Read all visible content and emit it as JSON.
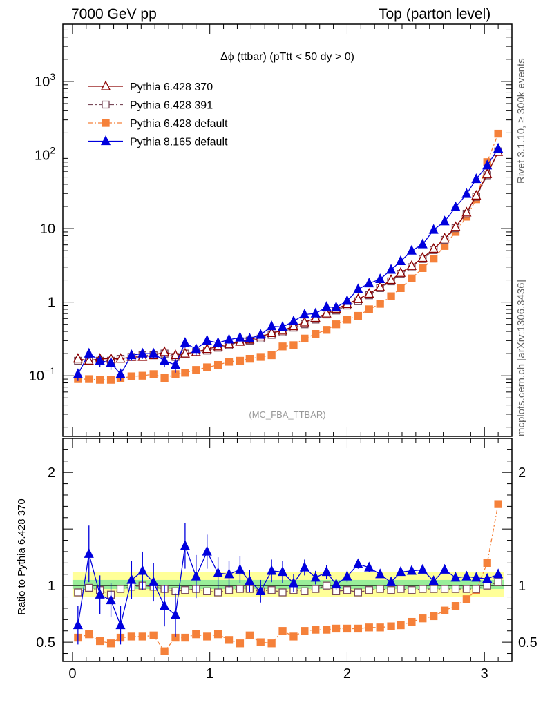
{
  "header": {
    "left": "7000 GeV pp",
    "right": "Top (parton level)"
  },
  "side_notes": {
    "rivet": "Rivet 3.1.10, ≥ 300k events",
    "mcplots": "mcplots.cern.ch [arXiv:1306.3436]"
  },
  "chart_data": {
    "type": "line",
    "title": "Δϕ (ttbar) (pTtt < 50 dy > 0)",
    "watermark": "(MC_FBA_TTBAR)",
    "xlim": [
      -0.07,
      3.2
    ],
    "x_ticks": [
      "0",
      "1",
      "2",
      "3"
    ],
    "main": {
      "yscale": "log",
      "ylim": [
        0.015,
        6000
      ],
      "y_ticks": [
        {
          "value": 0.1,
          "base": "10",
          "exp": "−1"
        },
        {
          "value": 1,
          "base": "1",
          "exp": ""
        },
        {
          "value": 10,
          "base": "10",
          "exp": ""
        },
        {
          "value": 100,
          "base": "10",
          "exp": "2"
        },
        {
          "value": 1000,
          "base": "10",
          "exp": "3"
        }
      ]
    },
    "ratio": {
      "ylabel": "Ratio to Pythia 6.428 370",
      "ylim": [
        0.33,
        2.3
      ],
      "y_ticks": [
        "0.5",
        "1",
        "2"
      ],
      "band_yellow": [
        0.9,
        1.12
      ],
      "band_green": [
        0.97,
        1.05
      ]
    },
    "x": [
      0.04,
      0.12,
      0.2,
      0.28,
      0.35,
      0.43,
      0.51,
      0.59,
      0.67,
      0.75,
      0.82,
      0.9,
      0.98,
      1.06,
      1.14,
      1.22,
      1.29,
      1.37,
      1.45,
      1.53,
      1.61,
      1.69,
      1.77,
      1.85,
      1.92,
      2.0,
      2.08,
      2.16,
      2.24,
      2.32,
      2.39,
      2.47,
      2.55,
      2.63,
      2.71,
      2.79,
      2.87,
      2.94,
      3.02,
      3.1
    ],
    "series": [
      {
        "name": "Pythia 6.428 370",
        "color": "#8b0000",
        "marker": "triangle-open",
        "dash": "",
        "values": [
          0.17,
          0.16,
          0.17,
          0.17,
          0.17,
          0.18,
          0.18,
          0.19,
          0.21,
          0.19,
          0.2,
          0.21,
          0.23,
          0.25,
          0.27,
          0.29,
          0.31,
          0.34,
          0.38,
          0.41,
          0.47,
          0.53,
          0.61,
          0.7,
          0.81,
          0.94,
          1.1,
          1.3,
          1.6,
          2.0,
          2.5,
          3.1,
          4.0,
          5.3,
          7.3,
          10.5,
          16.5,
          28,
          55,
          110
        ],
        "errors": [
          0.015,
          0.015,
          0.015,
          0.015,
          0.015,
          0.016,
          0.016,
          0.017,
          0.02,
          0.018,
          0.019,
          0.02,
          0.02,
          0.02,
          0.02,
          0.02,
          0.02,
          0.02,
          0.02,
          0.02,
          0.02,
          0.02,
          0.02,
          0.02,
          0.02,
          0.02,
          0.02,
          0.02,
          0.02,
          0.02,
          0.02,
          0.02,
          0.02,
          0.02,
          0.02,
          0.02,
          0.02,
          0.02,
          0.02,
          0.02
        ],
        "ratio": [
          1,
          1,
          1,
          1,
          1,
          1,
          1,
          1,
          1,
          1,
          1,
          1,
          1,
          1,
          1,
          1,
          1,
          1,
          1,
          1,
          1,
          1,
          1,
          1,
          1,
          1,
          1,
          1,
          1,
          1,
          1,
          1,
          1,
          1,
          1,
          1,
          1,
          1,
          1,
          1
        ],
        "ratio_err": [
          0,
          0,
          0,
          0,
          0,
          0,
          0,
          0,
          0,
          0,
          0,
          0,
          0,
          0,
          0,
          0,
          0,
          0,
          0,
          0,
          0,
          0,
          0,
          0,
          0,
          0,
          0,
          0,
          0,
          0,
          0,
          0,
          0,
          0,
          0,
          0,
          0,
          0,
          0,
          0
        ]
      },
      {
        "name": "Pythia 6.428 391",
        "color": "#7a4a5a",
        "marker": "square-open",
        "dash": "7,3,2,3",
        "values": [
          0.16,
          0.16,
          0.16,
          0.16,
          0.17,
          0.18,
          0.19,
          0.19,
          0.2,
          0.18,
          0.2,
          0.21,
          0.22,
          0.24,
          0.26,
          0.29,
          0.3,
          0.32,
          0.36,
          0.39,
          0.45,
          0.5,
          0.58,
          0.68,
          0.77,
          0.9,
          1.03,
          1.24,
          1.55,
          1.92,
          2.42,
          2.98,
          3.86,
          5.1,
          7.0,
          10.1,
          15.9,
          27,
          53,
          112
        ],
        "errors": [
          0.015,
          0.015,
          0.015,
          0.015,
          0.015,
          0.016,
          0.016,
          0.017,
          0.02,
          0.018,
          0.019,
          0.02,
          0.02,
          0.02,
          0.02,
          0.02,
          0.02,
          0.02,
          0.02,
          0.02,
          0.02,
          0.02,
          0.02,
          0.02,
          0.02,
          0.02,
          0.02,
          0.02,
          0.02,
          0.02,
          0.02,
          0.02,
          0.02,
          0.02,
          0.02,
          0.02,
          0.02,
          0.02,
          0.02,
          0.02
        ],
        "ratio": [
          0.94,
          0.98,
          0.96,
          0.92,
          0.97,
          0.99,
          1.0,
          0.99,
          0.97,
          0.95,
          0.96,
          0.97,
          0.95,
          0.94,
          0.96,
          0.97,
          0.97,
          0.95,
          0.96,
          0.94,
          0.96,
          0.95,
          0.97,
          1.0,
          0.95,
          0.96,
          0.94,
          0.96,
          0.97,
          0.96,
          0.97,
          0.96,
          0.97,
          0.97,
          0.97,
          0.97,
          0.97,
          0.97,
          1.0,
          1.03
        ],
        "ratio_err": [
          0.03,
          0.03,
          0.03,
          0.03,
          0.03,
          0.03,
          0.03,
          0.03,
          0.03,
          0.03,
          0.03,
          0.03,
          0.03,
          0.03,
          0.03,
          0.03,
          0.03,
          0.03,
          0.03,
          0.03,
          0.03,
          0.02,
          0.02,
          0.02,
          0.02,
          0.02,
          0.02,
          0.02,
          0.02,
          0.02,
          0.02,
          0.02,
          0.02,
          0.02,
          0.02,
          0.02,
          0.02,
          0.02,
          0.02,
          0.02
        ]
      },
      {
        "name": "Pythia 6.428 default",
        "color": "#f5813a",
        "marker": "square-filled",
        "dash": "6,3,2,3",
        "values": [
          0.09,
          0.09,
          0.088,
          0.088,
          0.092,
          0.098,
          0.1,
          0.105,
          0.093,
          0.105,
          0.11,
          0.12,
          0.13,
          0.14,
          0.155,
          0.16,
          0.17,
          0.18,
          0.19,
          0.25,
          0.26,
          0.32,
          0.37,
          0.42,
          0.5,
          0.58,
          0.65,
          0.8,
          0.95,
          1.2,
          1.55,
          2.1,
          2.9,
          3.9,
          5.8,
          9.0,
          14.5,
          25,
          80,
          195
        ],
        "errors": [
          0.005,
          0.005,
          0.005,
          0.005,
          0.005,
          0.005,
          0.005,
          0.005,
          0.005,
          0.005,
          0.005,
          0.005,
          0.005,
          0.005,
          0.005,
          0.005,
          0.005,
          0.005,
          0.005,
          0.005,
          0.005,
          0.005,
          0.005,
          0.005,
          0.005,
          0.005,
          0.005,
          0.005,
          0.005,
          0.005,
          0.005,
          0.005,
          0.005,
          0.005,
          0.005,
          0.005,
          0.005,
          0.005,
          0.005,
          0.005
        ],
        "ratio": [
          0.54,
          0.57,
          0.51,
          0.49,
          0.54,
          0.55,
          0.55,
          0.56,
          0.42,
          0.54,
          0.54,
          0.57,
          0.55,
          0.57,
          0.52,
          0.49,
          0.56,
          0.5,
          0.49,
          0.6,
          0.55,
          0.6,
          0.61,
          0.61,
          0.62,
          0.62,
          0.62,
          0.63,
          0.63,
          0.64,
          0.65,
          0.68,
          0.71,
          0.73,
          0.78,
          0.82,
          0.88,
          0.96,
          1.2,
          1.72
        ],
        "ratio_err": [
          0.03,
          0.03,
          0.03,
          0.03,
          0.03,
          0.03,
          0.03,
          0.03,
          0.03,
          0.03,
          0.03,
          0.03,
          0.03,
          0.03,
          0.03,
          0.03,
          0.03,
          0.03,
          0.03,
          0.02,
          0.02,
          0.02,
          0.02,
          0.02,
          0.02,
          0.01,
          0.01,
          0.01,
          0.01,
          0.01,
          0.01,
          0.01,
          0.01,
          0.01,
          0.01,
          0.01,
          0.01,
          0.01,
          0.01,
          0.01
        ]
      },
      {
        "name": "Pythia 8.165 default",
        "color": "#0000dd",
        "marker": "triangle-filled",
        "dash": "",
        "values": [
          0.105,
          0.2,
          0.16,
          0.15,
          0.105,
          0.19,
          0.2,
          0.2,
          0.16,
          0.14,
          0.28,
          0.23,
          0.3,
          0.28,
          0.31,
          0.33,
          0.32,
          0.36,
          0.47,
          0.46,
          0.55,
          0.68,
          0.7,
          0.86,
          0.85,
          1.04,
          1.5,
          1.8,
          2.05,
          2.75,
          3.6,
          5.0,
          6.1,
          9.6,
          12.5,
          19.5,
          29.5,
          47,
          72,
          122
        ],
        "errors": [
          0.02,
          0.03,
          0.03,
          0.03,
          0.02,
          0.03,
          0.03,
          0.03,
          0.03,
          0.03,
          0.04,
          0.04,
          0.04,
          0.04,
          0.04,
          0.04,
          0.04,
          0.04,
          0.05,
          0.05,
          0.05,
          0.06,
          0.06,
          0.07,
          0.07,
          0.08,
          0.1,
          0.11,
          0.12,
          0.15,
          0.18,
          0.22,
          0.27,
          0.4,
          0.5,
          0.7,
          1.0,
          1.4,
          2.0,
          3.0
        ],
        "ratio": [
          0.65,
          1.28,
          0.92,
          0.87,
          0.65,
          1.05,
          1.13,
          1.03,
          0.82,
          0.74,
          1.35,
          1.08,
          1.3,
          1.11,
          1.1,
          1.14,
          1.04,
          0.95,
          1.13,
          1.12,
          1.02,
          1.16,
          1.07,
          1.12,
          1.01,
          1.08,
          1.19,
          1.16,
          1.1,
          1.03,
          1.12,
          1.13,
          1.14,
          1.04,
          1.14,
          1.07,
          1.08,
          1.07,
          1.06,
          1.1
        ],
        "ratio_err": [
          0.17,
          0.25,
          0.17,
          0.15,
          0.17,
          0.17,
          0.17,
          0.17,
          0.18,
          0.19,
          0.2,
          0.19,
          0.15,
          0.14,
          0.12,
          0.12,
          0.1,
          0.1,
          0.1,
          0.1,
          0.08,
          0.07,
          0.06,
          0.06,
          0.05,
          0.05,
          0.04,
          0.04,
          0.03,
          0.02,
          0.02,
          0.02,
          0.02,
          0.02,
          0.02,
          0.02,
          0.02,
          0.02,
          0.02,
          0.02
        ]
      }
    ]
  }
}
